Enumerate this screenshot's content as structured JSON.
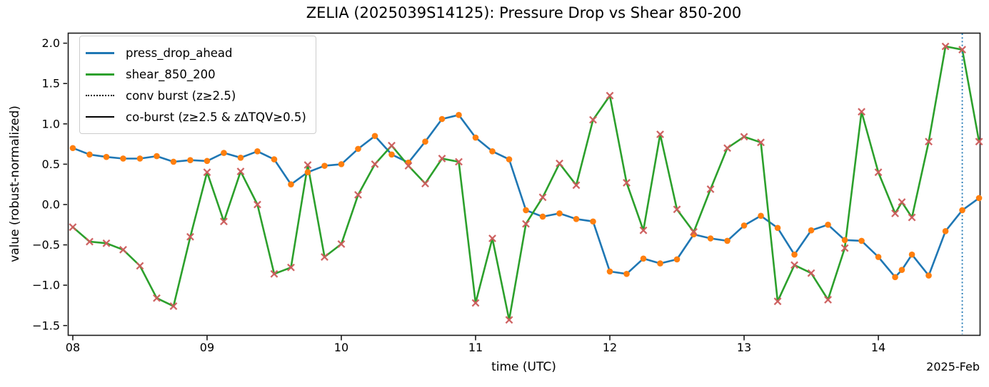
{
  "figure": {
    "title": "ZELIA (2025039S14125): Pressure Drop vs Shear 850-200",
    "xlabel": "time (UTC)",
    "ylabel": "value (robust-normalized)",
    "x_offset_label": "2025-Feb"
  },
  "legend": {
    "items": [
      {
        "label": "press_drop_ahead",
        "color": "#1f77b4",
        "style": "solid",
        "thickness": 3.5
      },
      {
        "label": "shear_850_200",
        "color": "#2ca02c",
        "style": "solid",
        "thickness": 3.5
      },
      {
        "label": "conv burst (z≥2.5)",
        "color": "#000000",
        "style": "dotted",
        "thickness": 2
      },
      {
        "label": "co-burst (z≥2.5 & zΔTQV≥0.5)",
        "color": "#000000",
        "style": "solid",
        "thickness": 2.5
      }
    ]
  },
  "chart_data": {
    "type": "line",
    "title": "ZELIA (2025039S14125): Pressure Drop vs Shear 850-200",
    "xlabel": "time (UTC)",
    "ylabel": "value (robust-normalized)",
    "x_unit": "days since 2025-02-08 00:00 UTC (3-hourly samples)",
    "xlim": [
      -0.037,
      6.755
    ],
    "ylim": [
      -1.617,
      2.129
    ],
    "grid": false,
    "legend_position": "upper-left",
    "xticks": [
      {
        "v": 0,
        "label": "08"
      },
      {
        "v": 1,
        "label": "09"
      },
      {
        "v": 2,
        "label": "10"
      },
      {
        "v": 3,
        "label": "11"
      },
      {
        "v": 4,
        "label": "12"
      },
      {
        "v": 5,
        "label": "13"
      },
      {
        "v": 6,
        "label": "14"
      }
    ],
    "yticks": [
      {
        "v": -1.5,
        "label": "−1.5"
      },
      {
        "v": -1.0,
        "label": "−1.0"
      },
      {
        "v": -0.5,
        "label": "−0.5"
      },
      {
        "v": 0.0,
        "label": "0.0"
      },
      {
        "v": 0.5,
        "label": "0.5"
      },
      {
        "v": 1.0,
        "label": "1.0"
      },
      {
        "v": 1.5,
        "label": "1.5"
      },
      {
        "v": 2.0,
        "label": "2.0"
      }
    ],
    "events": {
      "conv_burst_vlines": [
        6.625
      ],
      "conv_burst_color": "#1f77b4",
      "co_burst_vlines": []
    },
    "series": [
      {
        "name": "press_drop_ahead",
        "color": "#1f77b4",
        "line_width": 2.6,
        "marker": "circle",
        "marker_color": "#ff7f0e",
        "points": [
          [
            0.0,
            0.7
          ],
          [
            0.125,
            0.62
          ],
          [
            0.25,
            0.59
          ],
          [
            0.375,
            0.57
          ],
          [
            0.5,
            0.57
          ],
          [
            0.625,
            0.6
          ],
          [
            0.75,
            0.53
          ],
          [
            0.875,
            0.55
          ],
          [
            1.0,
            0.54
          ],
          [
            1.125,
            0.64
          ],
          [
            1.25,
            0.58
          ],
          [
            1.375,
            0.66
          ],
          [
            1.5,
            0.56
          ],
          [
            1.625,
            0.25
          ],
          [
            1.75,
            0.4
          ],
          [
            1.875,
            0.48
          ],
          [
            2.0,
            0.5
          ],
          [
            2.125,
            0.69
          ],
          [
            2.25,
            0.85
          ],
          [
            2.375,
            0.62
          ],
          [
            2.5,
            0.52
          ],
          [
            2.625,
            0.78
          ],
          [
            2.75,
            1.06
          ],
          [
            2.875,
            1.11
          ],
          [
            3.0,
            0.83
          ],
          [
            3.125,
            0.66
          ],
          [
            3.25,
            0.56
          ],
          [
            3.375,
            -0.07
          ],
          [
            3.5,
            -0.15
          ],
          [
            3.625,
            -0.11
          ],
          [
            3.75,
            -0.18
          ],
          [
            3.875,
            -0.21
          ],
          [
            4.0,
            -0.83
          ],
          [
            4.125,
            -0.86
          ],
          [
            4.25,
            -0.67
          ],
          [
            4.375,
            -0.73
          ],
          [
            4.5,
            -0.68
          ],
          [
            4.625,
            -0.37
          ],
          [
            4.75,
            -0.42
          ],
          [
            4.875,
            -0.45
          ],
          [
            5.0,
            -0.26
          ],
          [
            5.125,
            -0.14
          ],
          [
            5.25,
            -0.29
          ],
          [
            5.375,
            -0.62
          ],
          [
            5.5,
            -0.32
          ],
          [
            5.625,
            -0.25
          ],
          [
            5.75,
            -0.44
          ],
          [
            5.875,
            -0.45
          ],
          [
            6.0,
            -0.65
          ],
          [
            6.125,
            -0.9
          ],
          [
            6.175,
            -0.81
          ],
          [
            6.25,
            -0.62
          ],
          [
            6.375,
            -0.88
          ],
          [
            6.5,
            -0.33
          ],
          [
            6.625,
            -0.07
          ],
          [
            6.75,
            0.08
          ]
        ]
      },
      {
        "name": "shear_850_200",
        "color": "#2ca02c",
        "line_width": 2.6,
        "marker": "x",
        "marker_color": "#cd5c5c",
        "points": [
          [
            0.0,
            -0.28
          ],
          [
            0.125,
            -0.46
          ],
          [
            0.25,
            -0.48
          ],
          [
            0.375,
            -0.56
          ],
          [
            0.5,
            -0.76
          ],
          [
            0.625,
            -1.16
          ],
          [
            0.75,
            -1.26
          ],
          [
            0.875,
            -0.4
          ],
          [
            1.0,
            0.4
          ],
          [
            1.125,
            -0.21
          ],
          [
            1.25,
            0.41
          ],
          [
            1.375,
            0.0
          ],
          [
            1.5,
            -0.86
          ],
          [
            1.625,
            -0.78
          ],
          [
            1.75,
            0.49
          ],
          [
            1.875,
            -0.65
          ],
          [
            2.0,
            -0.49
          ],
          [
            2.125,
            0.12
          ],
          [
            2.25,
            0.5
          ],
          [
            2.375,
            0.73
          ],
          [
            2.5,
            0.48
          ],
          [
            2.625,
            0.26
          ],
          [
            2.75,
            0.57
          ],
          [
            2.875,
            0.53
          ],
          [
            3.0,
            -1.22
          ],
          [
            3.125,
            -0.42
          ],
          [
            3.25,
            -1.43
          ],
          [
            3.375,
            -0.24
          ],
          [
            3.5,
            0.09
          ],
          [
            3.625,
            0.51
          ],
          [
            3.75,
            0.24
          ],
          [
            3.875,
            1.05
          ],
          [
            4.0,
            1.35
          ],
          [
            4.125,
            0.27
          ],
          [
            4.25,
            -0.32
          ],
          [
            4.375,
            0.87
          ],
          [
            4.5,
            -0.06
          ],
          [
            4.625,
            -0.34
          ],
          [
            4.75,
            0.19
          ],
          [
            4.875,
            0.7
          ],
          [
            5.0,
            0.84
          ],
          [
            5.125,
            0.77
          ],
          [
            5.25,
            -1.2
          ],
          [
            5.375,
            -0.75
          ],
          [
            5.5,
            -0.85
          ],
          [
            5.625,
            -1.18
          ],
          [
            5.75,
            -0.54
          ],
          [
            5.875,
            1.15
          ],
          [
            6.0,
            0.4
          ],
          [
            6.125,
            -0.11
          ],
          [
            6.175,
            0.03
          ],
          [
            6.25,
            -0.16
          ],
          [
            6.375,
            0.78
          ],
          [
            6.5,
            1.96
          ],
          [
            6.625,
            1.92
          ],
          [
            6.75,
            0.78
          ]
        ]
      }
    ]
  }
}
